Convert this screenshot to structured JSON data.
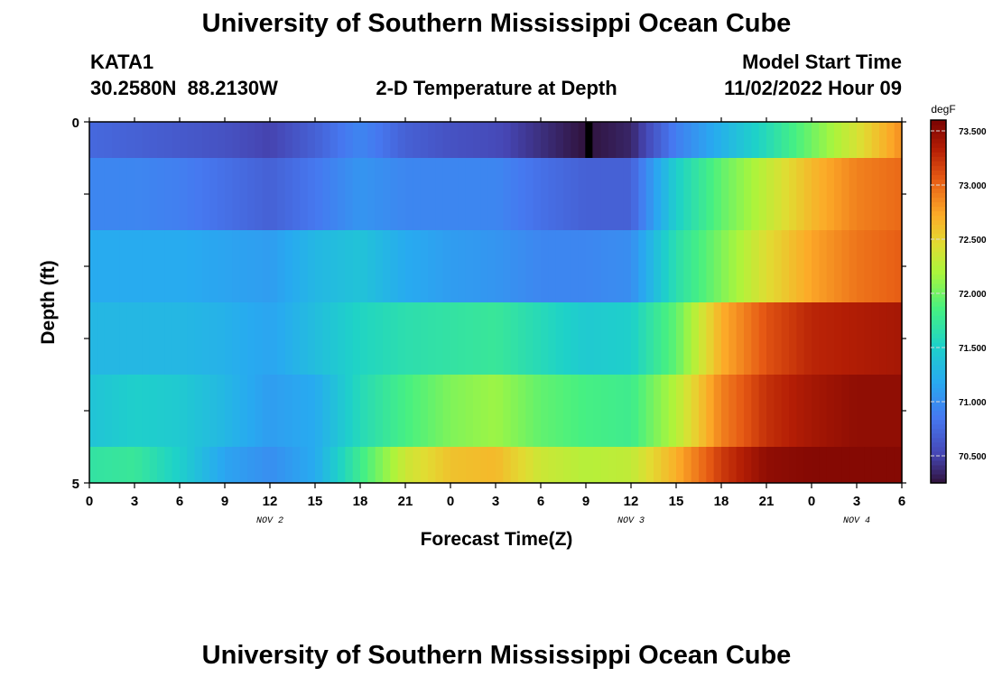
{
  "page": {
    "title": "University of Southern Mississippi Ocean Cube",
    "station_id": "KATA1",
    "coordinates": "30.2580N  88.2130W",
    "plot_title": "2-D Temperature at Depth",
    "model_start_label": "Model Start Time",
    "model_start_value": "11/02/2022 Hour 09",
    "footer_title": "University of Southern Mississippi Ocean Cube"
  },
  "chart_data": {
    "type": "heatmap",
    "title": "2-D Temperature at Depth",
    "xlabel": "Forecast Time(Z)",
    "ylabel": "Depth (ft)",
    "x_range_hours": [
      0,
      54
    ],
    "x_tick_step_hours": 3,
    "x_tick_labels": [
      "0",
      "3",
      "6",
      "9",
      "12",
      "15",
      "18",
      "21",
      "0",
      "3",
      "6",
      "9",
      "12",
      "15",
      "18",
      "21",
      "0",
      "3",
      "6"
    ],
    "date_labels": [
      {
        "label": "NOV 2",
        "hour": 12
      },
      {
        "label": "NOV 3",
        "hour": 36
      },
      {
        "label": "NOV 4",
        "hour": 51
      }
    ],
    "y_tick_labels": [
      {
        "label": "0",
        "depth": 0
      },
      {
        "label": "5",
        "depth": 5
      }
    ],
    "ylim": [
      0,
      5
    ],
    "colorbar": {
      "unit": "degF",
      "range": [
        70.25,
        73.6
      ],
      "tick_labels": [
        "73.500",
        "73.000",
        "72.500",
        "72.000",
        "71.500",
        "71.000",
        "70.500"
      ],
      "tick_values": [
        73.5,
        73.0,
        72.5,
        72.0,
        71.5,
        71.0,
        70.5
      ]
    },
    "hours": [
      0,
      3,
      6,
      9,
      12,
      15,
      18,
      21,
      24,
      27,
      30,
      33,
      36,
      39,
      42,
      45,
      48,
      51,
      54
    ],
    "series": [
      {
        "name": "depth 0.0-0.5 ft",
        "depth_top": 0.0,
        "depth_bottom": 0.5,
        "values": [
          70.75,
          70.7,
          70.65,
          70.6,
          70.5,
          70.7,
          70.95,
          70.7,
          70.6,
          70.55,
          70.4,
          70.25,
          70.35,
          70.9,
          71.25,
          71.6,
          72.0,
          72.4,
          72.85
        ]
      },
      {
        "name": "depth 0.5-1.5 ft",
        "depth_top": 0.5,
        "depth_bottom": 1.5,
        "values": [
          70.95,
          70.95,
          70.9,
          70.8,
          70.7,
          70.85,
          71.05,
          70.95,
          70.95,
          70.95,
          70.8,
          70.7,
          70.7,
          71.5,
          71.95,
          72.3,
          72.65,
          72.9,
          73.0
        ]
      },
      {
        "name": "depth 1.5-2.5 ft",
        "depth_top": 1.5,
        "depth_bottom": 2.5,
        "values": [
          71.2,
          71.2,
          71.2,
          71.15,
          71.1,
          71.3,
          71.4,
          71.2,
          71.1,
          71.05,
          70.95,
          70.95,
          71.0,
          71.65,
          72.05,
          72.45,
          72.75,
          72.95,
          73.05
        ]
      },
      {
        "name": "depth 2.5-3.5 ft",
        "depth_top": 2.5,
        "depth_bottom": 3.5,
        "values": [
          71.3,
          71.3,
          71.3,
          71.25,
          71.15,
          71.35,
          71.55,
          71.65,
          71.7,
          71.75,
          71.6,
          71.45,
          71.5,
          71.95,
          72.7,
          73.1,
          73.3,
          73.35,
          73.4
        ]
      },
      {
        "name": "depth 3.5-4.5 ft",
        "depth_top": 3.5,
        "depth_bottom": 4.5,
        "values": [
          71.4,
          71.5,
          71.45,
          71.3,
          71.1,
          71.2,
          71.6,
          71.85,
          72.05,
          72.15,
          71.95,
          71.85,
          71.8,
          72.25,
          72.9,
          73.25,
          73.4,
          73.5,
          73.5
        ]
      },
      {
        "name": "depth 4.5-5.0 ft",
        "depth_top": 4.5,
        "depth_bottom": 5.0,
        "values": [
          71.7,
          71.75,
          71.5,
          71.15,
          71.0,
          71.2,
          71.8,
          72.35,
          72.6,
          72.65,
          72.35,
          72.25,
          72.3,
          72.7,
          73.2,
          73.5,
          73.55,
          73.55,
          73.55
        ]
      }
    ],
    "cold_spot": {
      "hour": 33.2,
      "depth_top": 0.0,
      "depth_bottom": 0.5,
      "value": 70.25
    }
  }
}
